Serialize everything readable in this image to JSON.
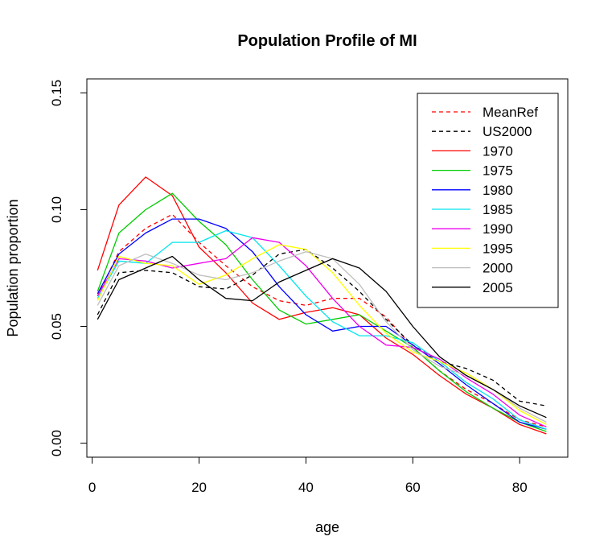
{
  "chart_data": {
    "type": "line",
    "title": "Population Profile of MI",
    "xlabel": "age",
    "ylabel": "Population proportion",
    "xlim": [
      -1,
      89
    ],
    "ylim": [
      -0.006,
      0.156
    ],
    "xticks": [
      0,
      20,
      40,
      60,
      80
    ],
    "yticks": [
      0.0,
      0.05,
      0.1,
      0.15
    ],
    "ytick_labels": [
      "0.00",
      "0.05",
      "0.10",
      "0.15"
    ],
    "grid": false,
    "legend_position": "top-right",
    "x": [
      1,
      5,
      10,
      15,
      20,
      25,
      30,
      35,
      40,
      45,
      50,
      55,
      60,
      65,
      70,
      75,
      80,
      85
    ],
    "series": [
      {
        "name": "MeanRef",
        "color": "#ff0000",
        "dash": true,
        "values": [
          0.063,
          0.082,
          0.092,
          0.098,
          0.086,
          0.076,
          0.067,
          0.061,
          0.059,
          0.062,
          0.062,
          0.054,
          0.041,
          0.031,
          0.023,
          0.017,
          0.01,
          0.007
        ]
      },
      {
        "name": "US2000",
        "color": "#000000",
        "dash": true,
        "values": [
          0.055,
          0.073,
          0.074,
          0.073,
          0.067,
          0.066,
          0.072,
          0.081,
          0.083,
          0.075,
          0.065,
          0.053,
          0.042,
          0.035,
          0.032,
          0.027,
          0.018,
          0.016
        ]
      },
      {
        "name": "1970",
        "color": "#ff0000",
        "dash": false,
        "values": [
          0.074,
          0.102,
          0.114,
          0.106,
          0.084,
          0.073,
          0.06,
          0.053,
          0.056,
          0.058,
          0.055,
          0.045,
          0.038,
          0.029,
          0.021,
          0.015,
          0.008,
          0.004
        ]
      },
      {
        "name": "1975",
        "color": "#00cc00",
        "dash": false,
        "values": [
          0.065,
          0.09,
          0.1,
          0.107,
          0.095,
          0.085,
          0.07,
          0.057,
          0.051,
          0.053,
          0.055,
          0.048,
          0.041,
          0.031,
          0.022,
          0.015,
          0.009,
          0.005
        ]
      },
      {
        "name": "1980",
        "color": "#0000ff",
        "dash": false,
        "values": [
          0.064,
          0.081,
          0.09,
          0.096,
          0.096,
          0.092,
          0.082,
          0.067,
          0.055,
          0.048,
          0.05,
          0.05,
          0.042,
          0.034,
          0.025,
          0.017,
          0.009,
          0.006
        ]
      },
      {
        "name": "1985",
        "color": "#00e5ee",
        "dash": false,
        "values": [
          0.062,
          0.078,
          0.077,
          0.086,
          0.086,
          0.091,
          0.088,
          0.076,
          0.063,
          0.052,
          0.046,
          0.046,
          0.043,
          0.035,
          0.026,
          0.019,
          0.01,
          0.006
        ]
      },
      {
        "name": "1990",
        "color": "#ee00ee",
        "dash": false,
        "values": [
          0.063,
          0.079,
          0.078,
          0.075,
          0.077,
          0.079,
          0.088,
          0.086,
          0.076,
          0.062,
          0.05,
          0.042,
          0.041,
          0.036,
          0.028,
          0.021,
          0.012,
          0.007
        ]
      },
      {
        "name": "1995",
        "color": "#ffff00",
        "dash": false,
        "values": [
          0.061,
          0.08,
          0.077,
          0.076,
          0.068,
          0.072,
          0.079,
          0.085,
          0.083,
          0.073,
          0.059,
          0.047,
          0.039,
          0.035,
          0.03,
          0.023,
          0.014,
          0.008
        ]
      },
      {
        "name": "2000",
        "color": "#bebebe",
        "dash": false,
        "values": [
          0.059,
          0.076,
          0.081,
          0.077,
          0.072,
          0.07,
          0.073,
          0.078,
          0.082,
          0.079,
          0.068,
          0.052,
          0.04,
          0.033,
          0.029,
          0.023,
          0.015,
          0.009
        ]
      },
      {
        "name": "2005",
        "color": "#000000",
        "dash": false,
        "values": [
          0.053,
          0.07,
          0.075,
          0.08,
          0.07,
          0.062,
          0.061,
          0.069,
          0.074,
          0.079,
          0.075,
          0.065,
          0.05,
          0.037,
          0.029,
          0.023,
          0.016,
          0.011
        ]
      }
    ]
  }
}
